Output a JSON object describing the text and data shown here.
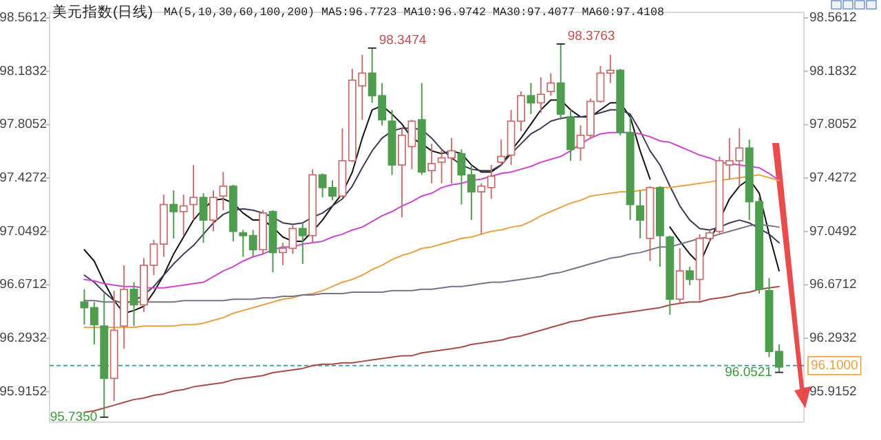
{
  "chart_data": {
    "type": "candlestick",
    "title": "美元指数(日线)",
    "subtitle": "MA(5,10,30,60,100,200) MA5:96.7723 MA10:96.9742 MA30:97.4077 MA60:97.4108",
    "categories": [
      null,
      null,
      null,
      null,
      null,
      null,
      null,
      null,
      null,
      null,
      null,
      null,
      null,
      null,
      null,
      null,
      null,
      null,
      null,
      null,
      null,
      null,
      null,
      null,
      null,
      null,
      null,
      null,
      null,
      null,
      null,
      null,
      null,
      null,
      null,
      null,
      null,
      null,
      null,
      null,
      null,
      null,
      null,
      null,
      null,
      null,
      null,
      null,
      null,
      null,
      null,
      null,
      null,
      null,
      null,
      null,
      null,
      null,
      null,
      null,
      null,
      null,
      null,
      null,
      null,
      null,
      null,
      null,
      null,
      null,
      null
    ],
    "ohlc": [
      [
        96.55,
        96.64,
        96.39,
        96.51
      ],
      [
        96.51,
        96.55,
        96.25,
        96.39
      ],
      [
        96.38,
        96.61,
        95.735,
        96.01
      ],
      [
        96.01,
        96.63,
        95.85,
        96.35
      ],
      [
        96.38,
        96.81,
        96.22,
        96.64
      ],
      [
        96.64,
        96.69,
        96.38,
        96.53
      ],
      [
        96.53,
        96.86,
        96.48,
        96.81
      ],
      [
        96.81,
        96.99,
        96.74,
        96.96
      ],
      [
        96.96,
        97.31,
        96.87,
        97.24
      ],
      [
        97.24,
        97.34,
        97.0,
        97.19
      ],
      [
        97.19,
        97.31,
        97.02,
        97.23
      ],
      [
        97.24,
        97.52,
        97.13,
        97.29
      ],
      [
        97.29,
        97.32,
        96.97,
        97.13
      ],
      [
        97.13,
        97.34,
        97.05,
        97.29
      ],
      [
        97.3,
        97.47,
        97.2,
        97.37
      ],
      [
        97.37,
        97.38,
        96.98,
        97.05
      ],
      [
        97.04,
        97.06,
        96.87,
        97.02
      ],
      [
        97.02,
        97.06,
        96.87,
        96.92
      ],
      [
        96.92,
        97.2,
        96.89,
        97.18
      ],
      [
        97.19,
        97.2,
        96.76,
        96.9
      ],
      [
        96.9,
        96.97,
        96.81,
        96.93
      ],
      [
        96.93,
        97.1,
        96.89,
        97.07
      ],
      [
        97.07,
        97.11,
        96.82,
        97.02
      ],
      [
        97.02,
        97.49,
        96.97,
        97.45
      ],
      [
        97.45,
        97.46,
        97.29,
        97.36
      ],
      [
        97.36,
        97.41,
        97.27,
        97.3
      ],
      [
        97.3,
        97.78,
        97.29,
        97.55
      ],
      [
        97.55,
        98.2,
        97.54,
        98.12
      ],
      [
        98.08,
        98.3,
        97.84,
        98.17
      ],
      [
        98.17,
        98.3474,
        97.96,
        98.01
      ],
      [
        98.01,
        98.1,
        97.8,
        97.84
      ],
      [
        97.83,
        97.91,
        97.45,
        97.52
      ],
      [
        97.52,
        97.78,
        97.15,
        97.73
      ],
      [
        97.65,
        97.84,
        97.49,
        97.83
      ],
      [
        97.84,
        98.1,
        97.45,
        97.47
      ],
      [
        97.48,
        97.67,
        97.39,
        97.53
      ],
      [
        97.54,
        97.63,
        97.39,
        97.57
      ],
      [
        97.57,
        97.71,
        97.39,
        97.62
      ],
      [
        97.6,
        97.63,
        97.24,
        97.45
      ],
      [
        97.45,
        97.52,
        97.13,
        97.33
      ],
      [
        97.33,
        97.39,
        97.03,
        97.37
      ],
      [
        97.36,
        97.52,
        97.28,
        97.44
      ],
      [
        97.54,
        97.7,
        97.52,
        97.58
      ],
      [
        97.59,
        97.91,
        97.52,
        97.83
      ],
      [
        97.83,
        98.04,
        97.76,
        98.01
      ],
      [
        98.01,
        98.1,
        97.88,
        97.96
      ],
      [
        97.96,
        98.14,
        97.89,
        98.02
      ],
      [
        98.04,
        98.17,
        98.01,
        98.1
      ],
      [
        98.1,
        98.3763,
        97.84,
        97.88
      ],
      [
        97.86,
        97.91,
        97.55,
        97.63
      ],
      [
        97.64,
        97.8,
        97.55,
        97.73
      ],
      [
        97.73,
        97.99,
        97.71,
        97.97
      ],
      [
        97.97,
        98.22,
        97.96,
        98.17
      ],
      [
        98.17,
        98.3,
        98.1,
        98.19
      ],
      [
        98.19,
        98.2,
        97.73,
        97.75
      ],
      [
        97.75,
        97.86,
        97.13,
        97.24
      ],
      [
        97.23,
        97.34,
        97.0,
        97.13
      ],
      [
        97.0,
        97.37,
        96.84,
        97.36
      ],
      [
        97.36,
        97.37,
        96.8,
        97.02
      ],
      [
        97.01,
        97.02,
        96.46,
        96.57
      ],
      [
        96.57,
        96.93,
        96.54,
        96.77
      ],
      [
        96.77,
        96.8,
        96.67,
        96.71
      ],
      [
        96.71,
        97.03,
        96.56,
        97.0
      ],
      [
        97.0,
        97.06,
        96.97,
        97.04
      ],
      [
        97.05,
        97.58,
        97.03,
        97.55
      ],
      [
        97.52,
        97.71,
        97.42,
        97.55
      ],
      [
        97.55,
        97.78,
        97.37,
        97.64
      ],
      [
        97.64,
        97.7,
        97.13,
        97.26
      ],
      [
        97.26,
        97.29,
        96.61,
        96.64
      ],
      [
        96.63,
        96.72,
        96.16,
        96.2
      ],
      [
        96.2,
        96.25,
        96.0521,
        96.09
      ]
    ],
    "series": [
      {
        "type": "line",
        "color": "#111111",
        "values": [
          96.92,
          96.84,
          96.69,
          96.56,
          96.47,
          96.49,
          96.52,
          96.62,
          96.74,
          96.89,
          97.01,
          97.13,
          97.21,
          97.27,
          97.28,
          97.25,
          97.18,
          97.13,
          97.13,
          97.08,
          97.01,
          96.98,
          96.98,
          97.05,
          97.13,
          97.23,
          97.32,
          97.47,
          97.71,
          97.91,
          97.94,
          97.88,
          97.81,
          97.71,
          97.67,
          97.62,
          97.6,
          97.62,
          97.6,
          97.52,
          97.47,
          97.47,
          97.52,
          97.62,
          97.71,
          97.81,
          97.91,
          97.98,
          97.98,
          97.91,
          97.86,
          97.86,
          97.91,
          97.96,
          97.96,
          97.86,
          97.62,
          97.42,
          null,
          97.08,
          96.98,
          96.89,
          96.82,
          96.98,
          97.13,
          97.28,
          97.37,
          97.42,
          97.32,
          97.03,
          96.77
        ]
      },
      {
        "type": "line",
        "color": "#3a3a55",
        "values": [
          96.74,
          96.69,
          96.62,
          96.56,
          96.54,
          96.56,
          96.6,
          96.66,
          96.74,
          96.82,
          96.89,
          96.95,
          97.03,
          97.11,
          97.17,
          97.2,
          97.21,
          97.2,
          97.18,
          97.15,
          97.11,
          97.1,
          97.11,
          97.15,
          97.18,
          97.23,
          97.28,
          97.37,
          97.5,
          97.62,
          97.71,
          97.76,
          97.78,
          97.78,
          97.77,
          97.71,
          97.63,
          97.57,
          97.52,
          97.49,
          97.48,
          97.48,
          97.52,
          97.6,
          97.67,
          97.74,
          97.78,
          97.83,
          97.85,
          97.86,
          97.86,
          97.87,
          97.89,
          97.91,
          97.91,
          97.88,
          97.76,
          97.62,
          97.52,
          97.37,
          97.23,
          97.13,
          97.07,
          97.06,
          97.08,
          97.11,
          97.13,
          97.11,
          97.07,
          97.03,
          96.97
        ]
      },
      {
        "type": "line",
        "color": "#cc44cc",
        "values": [
          96.71,
          96.7,
          96.68,
          96.67,
          96.66,
          96.66,
          96.65,
          96.65,
          96.65,
          96.66,
          96.67,
          96.68,
          96.69,
          96.73,
          96.77,
          96.8,
          96.84,
          96.87,
          96.89,
          96.92,
          96.94,
          96.94,
          96.96,
          96.97,
          96.98,
          97.01,
          97.03,
          97.06,
          97.08,
          97.12,
          97.16,
          97.19,
          97.23,
          97.26,
          97.3,
          97.32,
          97.36,
          97.38,
          97.39,
          97.41,
          97.42,
          97.44,
          97.46,
          97.47,
          97.49,
          97.51,
          97.54,
          97.56,
          97.58,
          97.62,
          97.67,
          97.71,
          97.74,
          97.75,
          97.75,
          97.75,
          97.74,
          97.72,
          97.69,
          97.68,
          97.65,
          97.62,
          97.59,
          97.57,
          97.54,
          97.53,
          97.52,
          97.51,
          97.5,
          97.46,
          97.41
        ]
      },
      {
        "type": "line",
        "color": "#e8a040",
        "values": [
          96.37,
          96.37,
          96.37,
          96.37,
          96.37,
          96.37,
          96.38,
          96.38,
          96.38,
          96.38,
          96.39,
          96.39,
          96.4,
          96.42,
          96.44,
          96.47,
          96.49,
          96.51,
          96.53,
          96.55,
          96.57,
          96.58,
          96.6,
          96.61,
          96.63,
          96.66,
          96.69,
          96.71,
          96.74,
          96.78,
          96.81,
          96.85,
          96.88,
          96.9,
          96.93,
          96.94,
          96.96,
          96.98,
          97.0,
          97.01,
          97.03,
          97.05,
          97.06,
          97.08,
          97.09,
          97.12,
          97.16,
          97.19,
          97.22,
          97.25,
          97.27,
          97.3,
          97.31,
          97.32,
          97.33,
          97.33,
          97.34,
          97.35,
          97.36,
          97.36,
          97.37,
          97.38,
          97.39,
          97.4,
          97.41,
          97.42,
          97.43,
          97.44,
          97.45,
          97.43,
          97.41
        ]
      },
      {
        "type": "line",
        "color": "#7a7088",
        "values": [
          96.56,
          96.56,
          96.55,
          96.55,
          96.55,
          96.55,
          96.55,
          96.55,
          96.55,
          96.55,
          96.56,
          96.56,
          96.56,
          96.56,
          96.56,
          96.57,
          96.57,
          96.57,
          96.58,
          96.58,
          96.59,
          96.59,
          96.6,
          96.6,
          96.61,
          96.61,
          96.61,
          96.62,
          96.62,
          96.62,
          96.62,
          96.63,
          96.63,
          96.63,
          96.64,
          96.64,
          96.65,
          96.66,
          96.66,
          96.67,
          96.68,
          96.69,
          96.69,
          96.7,
          96.71,
          96.72,
          96.73,
          96.75,
          96.76,
          96.78,
          96.8,
          96.82,
          96.84,
          96.86,
          96.87,
          96.89,
          96.9,
          96.92,
          96.94,
          96.94,
          96.96,
          96.98,
          97.0,
          97.01,
          97.03,
          97.05,
          97.07,
          97.09,
          97.1,
          97.09,
          97.08
        ]
      },
      {
        "type": "line",
        "color": "#a84a44",
        "values": [
          95.77,
          95.78,
          95.8,
          95.82,
          95.84,
          95.86,
          95.87,
          95.89,
          95.9,
          95.92,
          95.93,
          95.95,
          95.96,
          95.97,
          95.98,
          96.0,
          96.01,
          96.02,
          96.03,
          96.05,
          96.06,
          96.07,
          96.08,
          96.1,
          96.11,
          96.11,
          96.12,
          96.12,
          96.13,
          96.14,
          96.15,
          96.16,
          96.17,
          96.17,
          96.19,
          96.2,
          96.21,
          96.22,
          96.23,
          96.25,
          96.26,
          96.27,
          96.28,
          96.3,
          96.31,
          96.33,
          96.35,
          96.37,
          96.39,
          96.41,
          96.42,
          96.44,
          96.45,
          96.46,
          96.47,
          96.48,
          96.49,
          96.5,
          96.51,
          96.53,
          96.54,
          96.55,
          96.55,
          96.57,
          96.58,
          96.59,
          96.61,
          96.62,
          96.64,
          96.65,
          96.66
        ]
      }
    ],
    "ylim": [
      95.7,
      98.6
    ],
    "yticks": [
      95.9152,
      96.2932,
      96.6712,
      97.0492,
      97.4272,
      97.8052,
      98.1832,
      98.5612
    ],
    "y2lim": [
      95.7,
      98.6
    ],
    "y2ticks": [
      95.9152,
      96.2932,
      96.6712,
      97.0492,
      97.4272,
      97.8052,
      98.1832,
      98.5612
    ],
    "ref_lines": [
      {
        "axis": "y",
        "value": 96.1,
        "label": "96.1000",
        "color": "#4aa0a0",
        "line_style": "dashed"
      }
    ],
    "annotations": [
      "98.3474",
      "98.3763",
      "95.7350",
      "96.0521"
    ]
  }
}
